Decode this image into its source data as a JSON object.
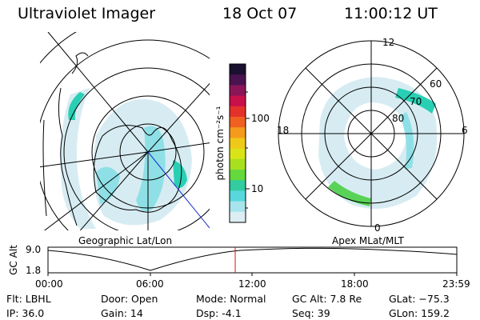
{
  "header": {
    "instrument": "Ultraviolet Imager",
    "date": "18 Oct 07",
    "time": "11:00:12 UT"
  },
  "colors": {
    "aurora_faint": "#d7ecf2",
    "aurora_mid": "#8fe0e6",
    "aurora_strong": "#29cfb4",
    "aurora_peak": "#59d357",
    "marker": "#e01010",
    "meridian": "#1a2ccc"
  },
  "left_panel": {
    "projection_label": "Geographic Lat/Lon"
  },
  "colorbar": {
    "units_label": "photon cm⁻²s⁻¹",
    "tick_100": "100",
    "tick_10": "10",
    "colors_top_to_bottom": [
      "#1a1030",
      "#4a1350",
      "#8a1658",
      "#c8104a",
      "#e4322a",
      "#f06020",
      "#f59a1c",
      "#f0c818",
      "#d8e418",
      "#a8e01e",
      "#64d83c",
      "#32cca0",
      "#58d8dc",
      "#a8e4ec",
      "#dceef4"
    ]
  },
  "right_panel": {
    "projection_label": "Apex MLat/MLT",
    "mlt_labels": {
      "top": "12",
      "bottom": "0",
      "left": "18",
      "right": "6"
    },
    "mlat_labels": [
      "60",
      "70",
      "80"
    ]
  },
  "altitude_plot": {
    "ylabel": "GC Alt",
    "y_ticks": [
      "9.0",
      "1.8"
    ],
    "x_ticks": [
      "00:00",
      "06:00",
      "12:00",
      "18:00",
      "23:59"
    ],
    "current_time_fraction": 0.458
  },
  "info_grid": {
    "flt": "Flt: LBHL",
    "ip": "IP: 36.0",
    "door": "Door: Open",
    "gain": "Gain: 14",
    "mode": "Mode: Normal",
    "dsp": "Dsp:    -4.1",
    "gc_alt": "GC Alt: 7.8 Re",
    "seq": "Seq: 39",
    "glat": "GLat: −75.3",
    "glon": "GLon: 159.2"
  }
}
